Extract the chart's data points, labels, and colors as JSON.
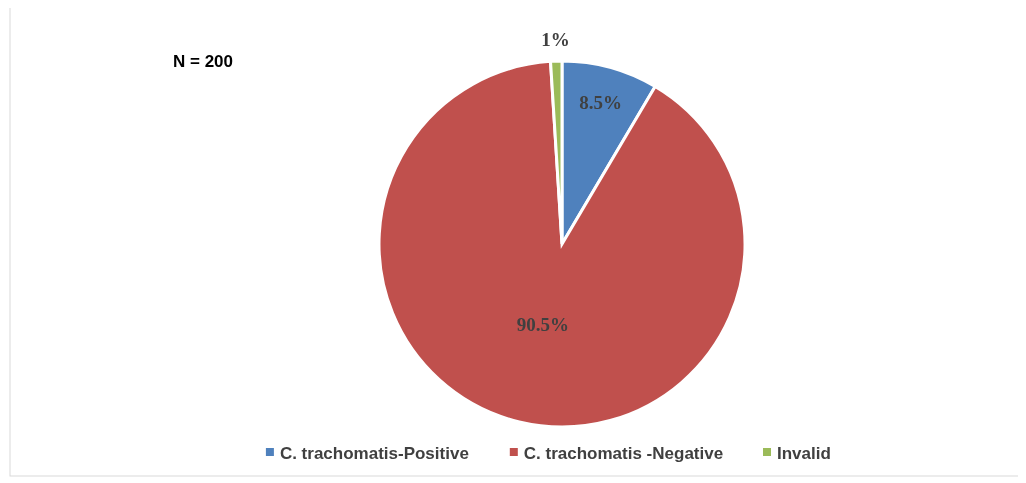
{
  "chart_data": {
    "type": "pie",
    "categories": [
      "C. trachomatis-Positive",
      "C. trachomatis -Negative",
      "Invalid"
    ],
    "values": [
      8.5,
      90.5,
      1
    ],
    "value_labels": [
      "8.5%",
      "90.5%",
      "1%"
    ],
    "colors": [
      "#4f81bd",
      "#c0504d",
      "#9bbb59"
    ],
    "annotations": [
      "N = 200"
    ],
    "legend": "bottom"
  }
}
